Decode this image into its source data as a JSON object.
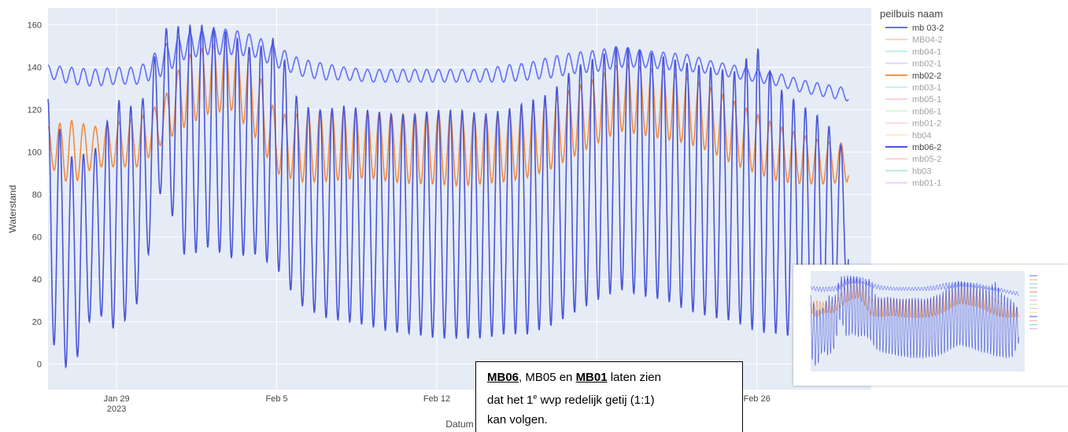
{
  "chart_data": {
    "type": "line",
    "title": "",
    "xlabel": "Datum",
    "ylabel": "Waterstand",
    "x_range": [
      "2023-01-26",
      "2023-03-03"
    ],
    "ylim": [
      -12,
      168
    ],
    "y_ticks": [
      0,
      20,
      40,
      60,
      80,
      100,
      120,
      140,
      160
    ],
    "y_tick_labels": [
      "0",
      "20",
      "40",
      "60",
      "80",
      "100",
      "120",
      "140",
      "160"
    ],
    "x_ticks": [
      "2023-01-29",
      "2023-02-05",
      "2023-02-12",
      "2023-02-19",
      "2023-02-26"
    ],
    "x_tick_labels": [
      "Jan 29",
      "Feb 5",
      "Feb 12",
      "Feb 19",
      "Feb 26"
    ],
    "x_tick_year": "2023",
    "grid": true,
    "legend": {
      "title": "peilbuis naam",
      "position": "right",
      "entries": [
        {
          "name": "mb 03-2",
          "color": "#636efa",
          "visible": true
        },
        {
          "name": "MB04-2",
          "color": "#f4a97a",
          "visible": false
        },
        {
          "name": "mb04-1",
          "color": "#7fe0c8",
          "visible": false
        },
        {
          "name": "mb02-1",
          "color": "#c9a8f7",
          "visible": false
        },
        {
          "name": "mb02-2",
          "color": "#f08c40",
          "visible": true
        },
        {
          "name": "mb03-1",
          "color": "#8fe0e8",
          "visible": false
        },
        {
          "name": "mb05-1",
          "color": "#f7a1c6",
          "visible": false
        },
        {
          "name": "mb06-1",
          "color": "#b8f0a8",
          "visible": false
        },
        {
          "name": "mb01-2",
          "color": "#f6b3df",
          "visible": false
        },
        {
          "name": "hb04",
          "color": "#fdd99a",
          "visible": false
        },
        {
          "name": "mb06-2",
          "color": "#4a55d8",
          "visible": true
        },
        {
          "name": "mb05-2",
          "color": "#f3a99a",
          "visible": false
        },
        {
          "name": "hb03",
          "color": "#6ddbc0",
          "visible": false
        },
        {
          "name": "mb01-1",
          "color": "#d7a6f2",
          "visible": false
        }
      ]
    },
    "series": [
      {
        "name": "mb 03-2",
        "color": "#636efa",
        "x": [
          "2023-01-26",
          "2023-01-27",
          "2023-01-28",
          "2023-01-29",
          "2023-01-30",
          "2023-01-31",
          "2023-02-01",
          "2023-02-02",
          "2023-02-03",
          "2023-02-04",
          "2023-02-05",
          "2023-02-06",
          "2023-02-07",
          "2023-02-08",
          "2023-02-09",
          "2023-02-10",
          "2023-02-11",
          "2023-02-12",
          "2023-02-13",
          "2023-02-14",
          "2023-02-15",
          "2023-02-16",
          "2023-02-17",
          "2023-02-18",
          "2023-02-19",
          "2023-02-20",
          "2023-02-21",
          "2023-02-22",
          "2023-02-23",
          "2023-02-24",
          "2023-02-25",
          "2023-02-26",
          "2023-02-27",
          "2023-02-28",
          "2023-03-01",
          "2023-03-02"
        ],
        "amplitude": [
          3,
          4,
          4,
          4,
          4,
          7,
          6,
          6,
          6,
          5,
          5,
          4,
          4,
          3,
          3,
          3,
          3,
          3,
          3,
          3,
          4,
          4,
          5,
          5,
          5,
          5,
          4,
          4,
          4,
          3,
          3,
          3,
          3,
          3,
          3,
          3
        ],
        "mean": [
          138,
          136,
          135,
          136,
          136,
          143,
          150,
          152,
          152,
          150,
          145,
          140,
          138,
          137,
          136,
          136,
          136,
          136,
          136,
          136,
          137,
          138,
          140,
          142,
          143,
          145,
          144,
          143,
          142,
          140,
          138,
          136,
          134,
          131,
          129,
          127
        ]
      },
      {
        "name": "mb02-2",
        "color": "#f08c40",
        "x": [
          "2023-01-26",
          "2023-01-27",
          "2023-01-28",
          "2023-01-29",
          "2023-01-30",
          "2023-01-31",
          "2023-02-01",
          "2023-02-02",
          "2023-02-03",
          "2023-02-04",
          "2023-02-05",
          "2023-02-06",
          "2023-02-07",
          "2023-02-08",
          "2023-02-09",
          "2023-02-10",
          "2023-02-11",
          "2023-02-12",
          "2023-02-13",
          "2023-02-14",
          "2023-02-15",
          "2023-02-16",
          "2023-02-17",
          "2023-02-18",
          "2023-02-19",
          "2023-02-20",
          "2023-02-21",
          "2023-02-22",
          "2023-02-23",
          "2023-02-24",
          "2023-02-25",
          "2023-02-26",
          "2023-02-27",
          "2023-02-28",
          "2023-03-01",
          "2023-03-02"
        ],
        "high": [
          112,
          115,
          112,
          114,
          116,
          124,
          145,
          150,
          152,
          142,
          118,
          118,
          120,
          120,
          119,
          118,
          118,
          119,
          117,
          117,
          118,
          120,
          124,
          130,
          135,
          142,
          140,
          138,
          135,
          130,
          124,
          118,
          112,
          108,
          105,
          104
        ],
        "low": [
          94,
          84,
          93,
          93,
          93,
          104,
          112,
          118,
          120,
          108,
          90,
          86,
          86,
          87,
          88,
          86,
          85,
          85,
          84,
          85,
          86,
          88,
          92,
          98,
          104,
          110,
          108,
          106,
          104,
          100,
          94,
          90,
          86,
          85,
          85,
          86
        ]
      },
      {
        "name": "mb06-2",
        "color": "#4a55d8",
        "x": [
          "2023-01-26",
          "2023-01-27",
          "2023-01-28",
          "2023-01-29",
          "2023-01-30",
          "2023-01-31",
          "2023-02-01",
          "2023-02-02",
          "2023-02-03",
          "2023-02-04",
          "2023-02-05",
          "2023-02-06",
          "2023-02-07",
          "2023-02-08",
          "2023-02-09",
          "2023-02-10",
          "2023-02-11",
          "2023-02-12",
          "2023-02-13",
          "2023-02-14",
          "2023-02-15",
          "2023-02-16",
          "2023-02-17",
          "2023-02-18",
          "2023-02-19",
          "2023-02-20",
          "2023-02-21",
          "2023-02-22",
          "2023-02-23",
          "2023-02-24",
          "2023-02-25",
          "2023-02-26",
          "2023-02-27",
          "2023-02-28",
          "2023-03-01",
          "2023-03-02"
        ],
        "high": [
          125,
          98,
          100,
          125,
          120,
          158,
          160,
          160,
          156,
          148,
          155,
          122,
          120,
          122,
          120,
          118,
          118,
          120,
          120,
          118,
          120,
          124,
          128,
          140,
          145,
          150,
          148,
          145,
          142,
          140,
          138,
          150,
          130,
          122,
          115,
          98
        ],
        "low": [
          14,
          -6,
          26,
          15,
          30,
          85,
          50,
          55,
          50,
          52,
          45,
          28,
          22,
          20,
          18,
          15,
          14,
          12,
          12,
          12,
          14,
          14,
          18,
          24,
          30,
          35,
          32,
          30,
          25,
          22,
          20,
          15,
          14,
          12,
          14,
          40
        ]
      }
    ]
  },
  "annotation": {
    "mb06": "MB06",
    "sep1": ", MB05 en ",
    "mb01": "MB01",
    "sep2": " laten zien",
    "line2_pre": "dat het 1",
    "line2_sup": "e",
    "line2_post": " wvp redelijk getij (1:1)",
    "line3": "kan volgen."
  }
}
